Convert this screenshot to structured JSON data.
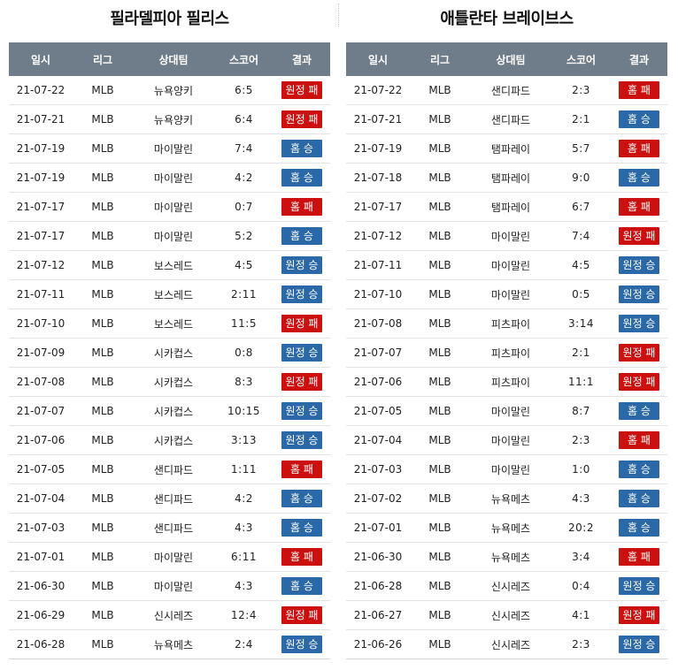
{
  "headers": [
    "일시",
    "리그",
    "상대팀",
    "스코어",
    "결과"
  ],
  "colors": {
    "win": "#2a68a8",
    "loss": "#cc1010",
    "header": "#6f7c89"
  },
  "tables": [
    {
      "team": "필라델피아 필리스",
      "rows": [
        {
          "date": "21-07-22",
          "league": "MLB",
          "opponent": "뉴욕양키",
          "score": "6:5",
          "result": "원정 패",
          "type": "loss"
        },
        {
          "date": "21-07-21",
          "league": "MLB",
          "opponent": "뉴욕양키",
          "score": "6:4",
          "result": "원정 패",
          "type": "loss"
        },
        {
          "date": "21-07-19",
          "league": "MLB",
          "opponent": "마이말린",
          "score": "7:4",
          "result": "홈 승",
          "type": "win"
        },
        {
          "date": "21-07-19",
          "league": "MLB",
          "opponent": "마이말린",
          "score": "4:2",
          "result": "홈 승",
          "type": "win"
        },
        {
          "date": "21-07-17",
          "league": "MLB",
          "opponent": "마이말린",
          "score": "0:7",
          "result": "홈 패",
          "type": "loss"
        },
        {
          "date": "21-07-17",
          "league": "MLB",
          "opponent": "마이말린",
          "score": "5:2",
          "result": "홈 승",
          "type": "win"
        },
        {
          "date": "21-07-12",
          "league": "MLB",
          "opponent": "보스레드",
          "score": "4:5",
          "result": "원정 승",
          "type": "win"
        },
        {
          "date": "21-07-11",
          "league": "MLB",
          "opponent": "보스레드",
          "score": "2:11",
          "result": "원정 승",
          "type": "win"
        },
        {
          "date": "21-07-10",
          "league": "MLB",
          "opponent": "보스레드",
          "score": "11:5",
          "result": "원정 패",
          "type": "loss"
        },
        {
          "date": "21-07-09",
          "league": "MLB",
          "opponent": "시카컵스",
          "score": "0:8",
          "result": "원정 승",
          "type": "win"
        },
        {
          "date": "21-07-08",
          "league": "MLB",
          "opponent": "시카컵스",
          "score": "8:3",
          "result": "원정 패",
          "type": "loss"
        },
        {
          "date": "21-07-07",
          "league": "MLB",
          "opponent": "시카컵스",
          "score": "10:15",
          "result": "원정 승",
          "type": "win"
        },
        {
          "date": "21-07-06",
          "league": "MLB",
          "opponent": "시카컵스",
          "score": "3:13",
          "result": "원정 승",
          "type": "win"
        },
        {
          "date": "21-07-05",
          "league": "MLB",
          "opponent": "샌디파드",
          "score": "1:11",
          "result": "홈 패",
          "type": "loss"
        },
        {
          "date": "21-07-04",
          "league": "MLB",
          "opponent": "샌디파드",
          "score": "4:2",
          "result": "홈 승",
          "type": "win"
        },
        {
          "date": "21-07-03",
          "league": "MLB",
          "opponent": "샌디파드",
          "score": "4:3",
          "result": "홈 승",
          "type": "win"
        },
        {
          "date": "21-07-01",
          "league": "MLB",
          "opponent": "마이말린",
          "score": "6:11",
          "result": "홈 패",
          "type": "loss"
        },
        {
          "date": "21-06-30",
          "league": "MLB",
          "opponent": "마이말린",
          "score": "4:3",
          "result": "홈 승",
          "type": "win"
        },
        {
          "date": "21-06-29",
          "league": "MLB",
          "opponent": "신시레즈",
          "score": "12:4",
          "result": "원정 패",
          "type": "loss"
        },
        {
          "date": "21-06-28",
          "league": "MLB",
          "opponent": "뉴욕메츠",
          "score": "2:4",
          "result": "원정 승",
          "type": "win"
        }
      ]
    },
    {
      "team": "애틀란타 브레이브스",
      "rows": [
        {
          "date": "21-07-22",
          "league": "MLB",
          "opponent": "샌디파드",
          "score": "2:3",
          "result": "홈 패",
          "type": "loss"
        },
        {
          "date": "21-07-21",
          "league": "MLB",
          "opponent": "샌디파드",
          "score": "2:1",
          "result": "홈 승",
          "type": "win"
        },
        {
          "date": "21-07-19",
          "league": "MLB",
          "opponent": "탬파레이",
          "score": "5:7",
          "result": "홈 패",
          "type": "loss"
        },
        {
          "date": "21-07-18",
          "league": "MLB",
          "opponent": "탬파레이",
          "score": "9:0",
          "result": "홈 승",
          "type": "win"
        },
        {
          "date": "21-07-17",
          "league": "MLB",
          "opponent": "탬파레이",
          "score": "6:7",
          "result": "홈 패",
          "type": "loss"
        },
        {
          "date": "21-07-12",
          "league": "MLB",
          "opponent": "마이말린",
          "score": "7:4",
          "result": "원정 패",
          "type": "loss"
        },
        {
          "date": "21-07-11",
          "league": "MLB",
          "opponent": "마이말린",
          "score": "4:5",
          "result": "원정 승",
          "type": "win"
        },
        {
          "date": "21-07-10",
          "league": "MLB",
          "opponent": "마이말린",
          "score": "0:5",
          "result": "원정 승",
          "type": "win"
        },
        {
          "date": "21-07-08",
          "league": "MLB",
          "opponent": "피츠파이",
          "score": "3:14",
          "result": "원정 승",
          "type": "win"
        },
        {
          "date": "21-07-07",
          "league": "MLB",
          "opponent": "피츠파이",
          "score": "2:1",
          "result": "원정 패",
          "type": "loss"
        },
        {
          "date": "21-07-06",
          "league": "MLB",
          "opponent": "피츠파이",
          "score": "11:1",
          "result": "원정 패",
          "type": "loss"
        },
        {
          "date": "21-07-05",
          "league": "MLB",
          "opponent": "마이말린",
          "score": "8:7",
          "result": "홈 승",
          "type": "win"
        },
        {
          "date": "21-07-04",
          "league": "MLB",
          "opponent": "마이말린",
          "score": "2:3",
          "result": "홈 패",
          "type": "loss"
        },
        {
          "date": "21-07-03",
          "league": "MLB",
          "opponent": "마이말린",
          "score": "1:0",
          "result": "홈 승",
          "type": "win"
        },
        {
          "date": "21-07-02",
          "league": "MLB",
          "opponent": "뉴욕메츠",
          "score": "4:3",
          "result": "홈 승",
          "type": "win"
        },
        {
          "date": "21-07-01",
          "league": "MLB",
          "opponent": "뉴욕메츠",
          "score": "20:2",
          "result": "홈 승",
          "type": "win"
        },
        {
          "date": "21-06-30",
          "league": "MLB",
          "opponent": "뉴욕메츠",
          "score": "3:4",
          "result": "홈 패",
          "type": "loss"
        },
        {
          "date": "21-06-28",
          "league": "MLB",
          "opponent": "신시레즈",
          "score": "0:4",
          "result": "원정 승",
          "type": "win"
        },
        {
          "date": "21-06-27",
          "league": "MLB",
          "opponent": "신시레즈",
          "score": "4:1",
          "result": "원정 패",
          "type": "loss"
        },
        {
          "date": "21-06-26",
          "league": "MLB",
          "opponent": "신시레즈",
          "score": "2:3",
          "result": "원정 승",
          "type": "win"
        }
      ]
    }
  ]
}
